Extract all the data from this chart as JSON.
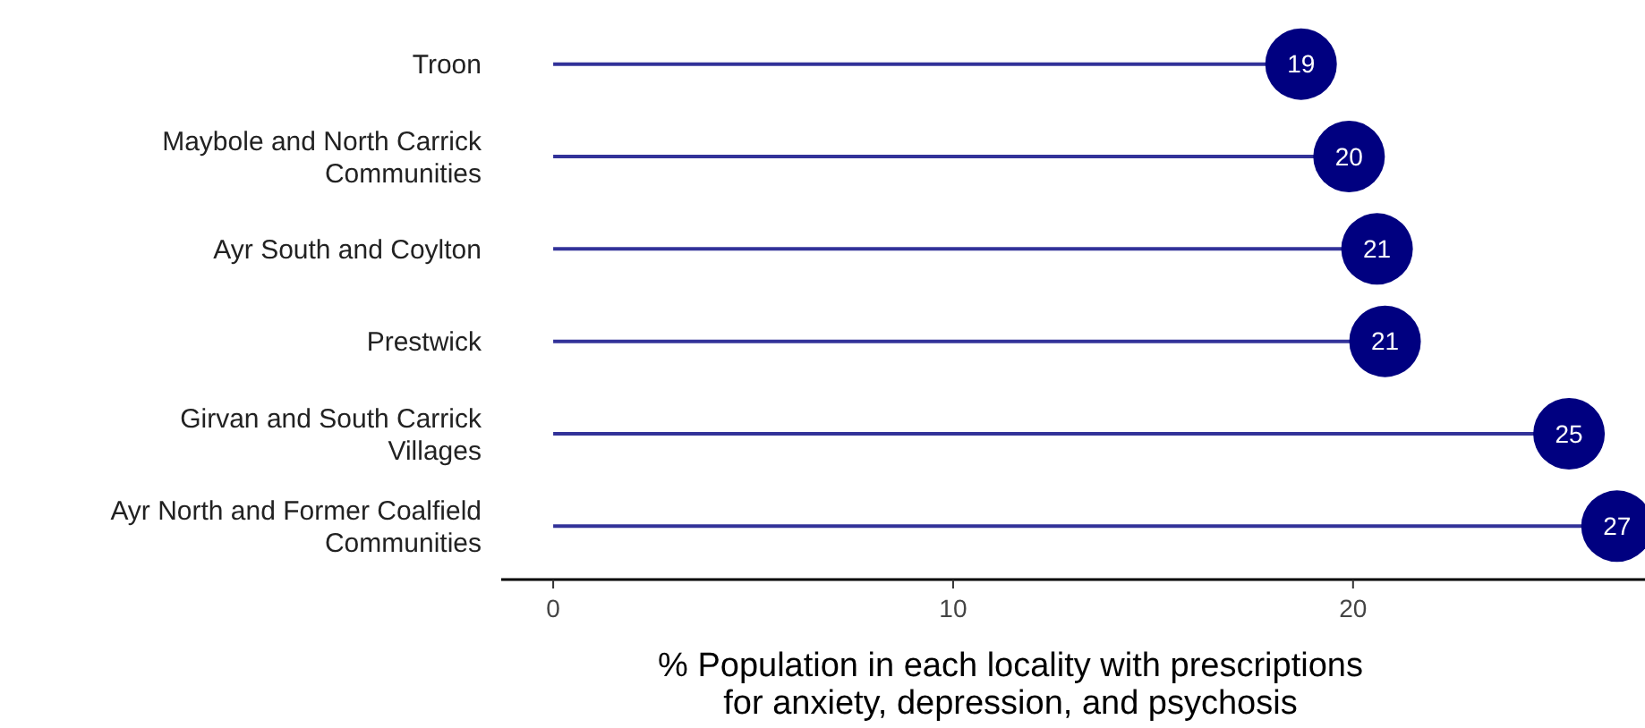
{
  "chart_data": {
    "type": "lollipop",
    "orientation": "horizontal",
    "xlabel": "% Population in each locality with prescriptions for anxiety, depression, and psychosis",
    "categories": [
      "Troon",
      "Maybole and North Carrick Communities",
      "Ayr South and Coylton",
      "Prestwick",
      "Girvan and South Carrick Villages",
      "Ayr North and Former Coalfield Communities"
    ],
    "series": [
      {
        "color": "#000080",
        "values": [
          18.7,
          19.9,
          20.6,
          20.8,
          25.4,
          26.6
        ],
        "value_labels": [
          "19",
          "20",
          "21",
          "21",
          "25",
          "27"
        ]
      }
    ],
    "xlim": [
      -1.3,
      27.3
    ],
    "xticks": [
      0,
      10,
      20
    ],
    "grid": false
  }
}
